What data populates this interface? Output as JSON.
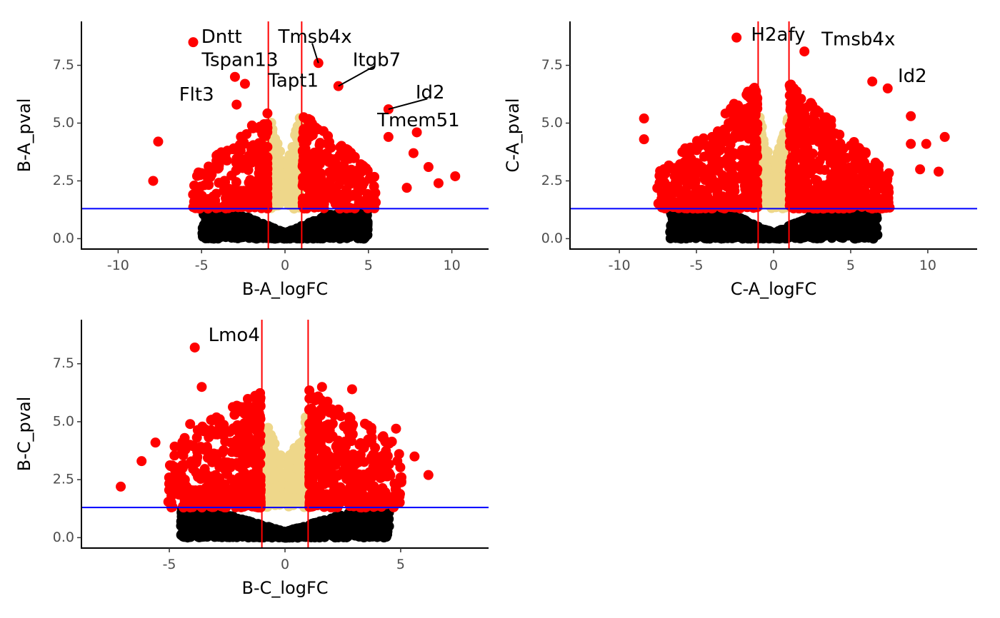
{
  "colors": {
    "significant": "#ff0000",
    "fc_only": "#eed78a",
    "not_significant": "#000000",
    "pval_threshold_line": "#0000ff",
    "fc_threshold_lines": "#ff0000"
  },
  "chart_data": [
    {
      "type": "scatter",
      "subtype": "volcano",
      "xlabel": "B-A_logFC",
      "ylabel": "B-A_pval",
      "xlim": [
        -12.2,
        12.2
      ],
      "ylim": [
        -0.45,
        9.4
      ],
      "xticks": [
        -10,
        -5,
        0,
        5,
        10
      ],
      "yticks": [
        0.0,
        2.5,
        5.0,
        7.5
      ],
      "xtick_labels": [
        "-10",
        "-5",
        "0",
        "5",
        "10"
      ],
      "ytick_labels": [
        "0.0",
        "2.5",
        "5.0",
        "7.5"
      ],
      "pval_threshold": 1.3,
      "fc_thresholds": [
        -1,
        1
      ],
      "seed": 11,
      "dense_counts": {
        "red": 520,
        "tan": 240,
        "black": 1200
      },
      "dense_spread": {
        "xmax": 5.5,
        "ymax": 5.5
      },
      "points": [
        {
          "gene": "Dntt",
          "x": -5.5,
          "y": 8.5,
          "label_x": -3.8,
          "label_y": 8.7,
          "leader": false
        },
        {
          "gene": "Tmsb4x",
          "x": 2.0,
          "y": 7.6,
          "label_x": 1.8,
          "label_y": 8.7,
          "leader": true
        },
        {
          "gene": "Tspan13",
          "x": -3.0,
          "y": 7.0,
          "label_x": -2.7,
          "label_y": 7.7,
          "leader": false
        },
        {
          "gene": "Itgb7",
          "x": 3.2,
          "y": 6.6,
          "label_x": 5.5,
          "label_y": 7.7,
          "leader": true
        },
        {
          "gene": "Tapt1",
          "x": -2.4,
          "y": 6.7,
          "label_x": 0.5,
          "label_y": 6.8,
          "leader": false
        },
        {
          "gene": "Flt3",
          "x": -2.9,
          "y": 5.8,
          "label_x": -5.3,
          "label_y": 6.2,
          "leader": false
        },
        {
          "gene": "Id2",
          "x": 6.2,
          "y": 5.6,
          "label_x": 8.7,
          "label_y": 6.3,
          "leader": true
        },
        {
          "gene": "Tmem51",
          "x": 6.2,
          "y": 4.4,
          "label_x": 8.0,
          "label_y": 5.1,
          "leader": false
        },
        {
          "gene": "",
          "x": -7.6,
          "y": 4.2
        },
        {
          "gene": "",
          "x": -7.9,
          "y": 2.5
        },
        {
          "gene": "",
          "x": 7.9,
          "y": 4.6
        },
        {
          "gene": "",
          "x": 10.2,
          "y": 2.7
        },
        {
          "gene": "",
          "x": 9.2,
          "y": 2.4
        },
        {
          "gene": "",
          "x": 7.3,
          "y": 2.2
        },
        {
          "gene": "",
          "x": 8.6,
          "y": 3.1
        },
        {
          "gene": "",
          "x": 7.7,
          "y": 3.7
        }
      ]
    },
    {
      "type": "scatter",
      "subtype": "volcano",
      "xlabel": "C-A_logFC",
      "ylabel": "C-A_pval",
      "xlim": [
        -13.2,
        13.2
      ],
      "ylim": [
        -0.45,
        9.4
      ],
      "xticks": [
        -10,
        -5,
        0,
        5,
        10
      ],
      "yticks": [
        0.0,
        2.5,
        5.0,
        7.5
      ],
      "xtick_labels": [
        "-10",
        "-5",
        "0",
        "5",
        "10"
      ],
      "ytick_labels": [
        "0.0",
        "2.5",
        "5.0",
        "7.5"
      ],
      "pval_threshold": 1.3,
      "fc_thresholds": [
        -1,
        1
      ],
      "seed": 29,
      "dense_counts": {
        "red": 950,
        "tan": 260,
        "black": 1300
      },
      "dense_spread": {
        "xmax": 7.5,
        "ymax": 6.8
      },
      "points": [
        {
          "gene": "H2afy",
          "x": -2.4,
          "y": 8.7,
          "label_x": 0.3,
          "label_y": 8.8,
          "leader": false
        },
        {
          "gene": "Tmsb4x",
          "x": 2.0,
          "y": 8.1,
          "label_x": 5.5,
          "label_y": 8.6,
          "leader": false
        },
        {
          "gene": "Id2",
          "x": 7.4,
          "y": 6.5,
          "label_x": 9.0,
          "label_y": 7.0,
          "leader": false
        },
        {
          "gene": "",
          "x": 6.4,
          "y": 6.8
        },
        {
          "gene": "",
          "x": -8.4,
          "y": 5.2
        },
        {
          "gene": "",
          "x": -8.4,
          "y": 4.3
        },
        {
          "gene": "",
          "x": 11.1,
          "y": 4.4
        },
        {
          "gene": "",
          "x": 10.7,
          "y": 2.9
        },
        {
          "gene": "",
          "x": 8.9,
          "y": 5.3
        },
        {
          "gene": "",
          "x": 9.9,
          "y": 4.1
        },
        {
          "gene": "",
          "x": 7.3,
          "y": 1.9
        },
        {
          "gene": "",
          "x": 9.5,
          "y": 3.0
        },
        {
          "gene": "",
          "x": 8.9,
          "y": 4.1
        }
      ]
    },
    {
      "type": "scatter",
      "subtype": "volcano",
      "xlabel": "B-C_logFC",
      "ylabel": "B-C_pval",
      "xlim": [
        -8.8,
        8.8
      ],
      "ylim": [
        -0.45,
        9.4
      ],
      "xticks": [
        -5,
        0,
        5
      ],
      "yticks": [
        0.0,
        2.5,
        5.0,
        7.5
      ],
      "xtick_labels": [
        "-5",
        "0",
        "5"
      ],
      "ytick_labels": [
        "0.0",
        "2.5",
        "5.0",
        "7.5"
      ],
      "pval_threshold": 1.3,
      "fc_thresholds": [
        -1,
        1
      ],
      "seed": 47,
      "dense_counts": {
        "red": 800,
        "tan": 260,
        "black": 1300
      },
      "dense_spread": {
        "xmax": 5.0,
        "ymax": 6.4
      },
      "points": [
        {
          "gene": "Lmo4",
          "x": -3.9,
          "y": 8.2,
          "label_x": -2.2,
          "label_y": 8.7,
          "leader": false
        },
        {
          "gene": "",
          "x": -7.1,
          "y": 2.2
        },
        {
          "gene": "",
          "x": -6.2,
          "y": 3.3
        },
        {
          "gene": "",
          "x": -5.6,
          "y": 4.1
        },
        {
          "gene": "",
          "x": 6.2,
          "y": 2.7
        },
        {
          "gene": "",
          "x": 5.6,
          "y": 3.5
        },
        {
          "gene": "",
          "x": 4.8,
          "y": 4.7
        },
        {
          "gene": "",
          "x": 1.6,
          "y": 6.5
        },
        {
          "gene": "",
          "x": 2.9,
          "y": 6.4
        },
        {
          "gene": "",
          "x": -3.6,
          "y": 6.5
        },
        {
          "gene": "",
          "x": -4.1,
          "y": 4.9
        }
      ]
    }
  ]
}
